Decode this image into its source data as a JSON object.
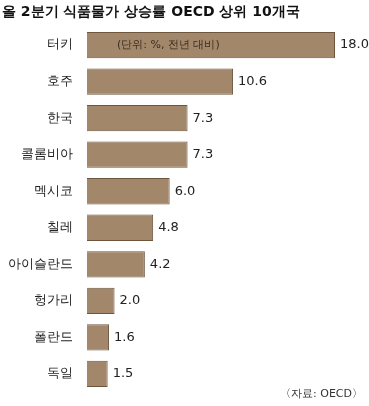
{
  "chart_data": {
    "type": "bar",
    "orientation": "horizontal",
    "title": "올 2분기 식품물가 상승률 OECD 상위 10개국",
    "subtitle": "(단위: %, 전년 대비)",
    "source": "〈자료: OECD〉",
    "categories": [
      "터키",
      "호주",
      "한국",
      "콜롬비아",
      "멕시코",
      "칠레",
      "아이슬란드",
      "헝가리",
      "폴란드",
      "독일"
    ],
    "values": [
      18.0,
      10.6,
      7.3,
      7.3,
      6.0,
      4.8,
      4.2,
      2.0,
      1.6,
      1.5
    ],
    "value_labels": [
      "18.0",
      "10.6",
      "7.3",
      "7.3",
      "6.0",
      "4.8",
      "4.2",
      "2.0",
      "1.6",
      "1.5"
    ],
    "color": "#a3876a",
    "xlim": [
      0,
      18
    ],
    "grid": false,
    "data_labels": true,
    "tick_labels": "y"
  }
}
